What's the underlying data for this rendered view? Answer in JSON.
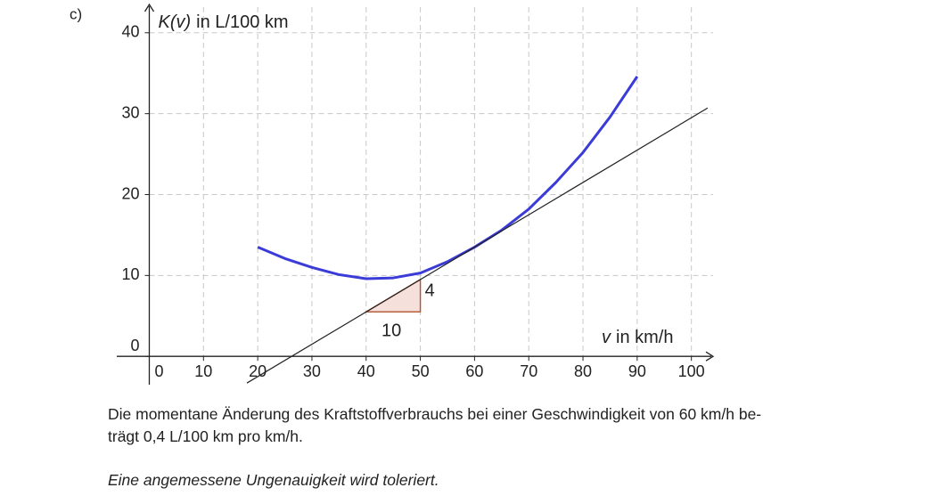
{
  "part_label": "c)",
  "chart_data": {
    "type": "line",
    "x_label_var": "v",
    "x_label_unit": "in km/h",
    "y_label_var": "K(v)",
    "y_label_unit": "in L/100 km",
    "xlim": [
      -6,
      104
    ],
    "ylim": [
      -3.5,
      43.5
    ],
    "xticks": [
      0,
      10,
      20,
      30,
      40,
      50,
      60,
      70,
      80,
      90,
      100
    ],
    "yticks": [
      0,
      10,
      20,
      30,
      40
    ],
    "grid": true,
    "series": [
      {
        "color": "#3b3bd8",
        "x": [
          20,
          25,
          30,
          35,
          40,
          45,
          50,
          55,
          60,
          65,
          70,
          75,
          80,
          85,
          90
        ],
        "values": [
          13.5,
          12.1,
          11.0,
          10.1,
          9.6,
          9.7,
          10.3,
          11.7,
          13.5,
          15.6,
          18.2,
          21.5,
          25.2,
          29.6,
          34.6
        ]
      },
      {
        "color": "#222222",
        "x": [
          18,
          103
        ],
        "values": [
          -3.3,
          30.7
        ]
      }
    ],
    "slope_triangle": {
      "x": [
        40,
        50
      ],
      "y": [
        5.5,
        9.5
      ],
      "run_label": "10",
      "rise_label": "4",
      "fill": "#f6e0dc",
      "stroke": "#b0522c"
    }
  },
  "text": {
    "lines": [
      "Die momentane Änderung des Kraftstoffverbrauchs bei einer Geschwindigkeit von 60 km/h be-",
      "trägt 0,4 L/100 km pro km/h."
    ],
    "note": "Eine angemessene Ungenauigkeit wird toleriert."
  }
}
